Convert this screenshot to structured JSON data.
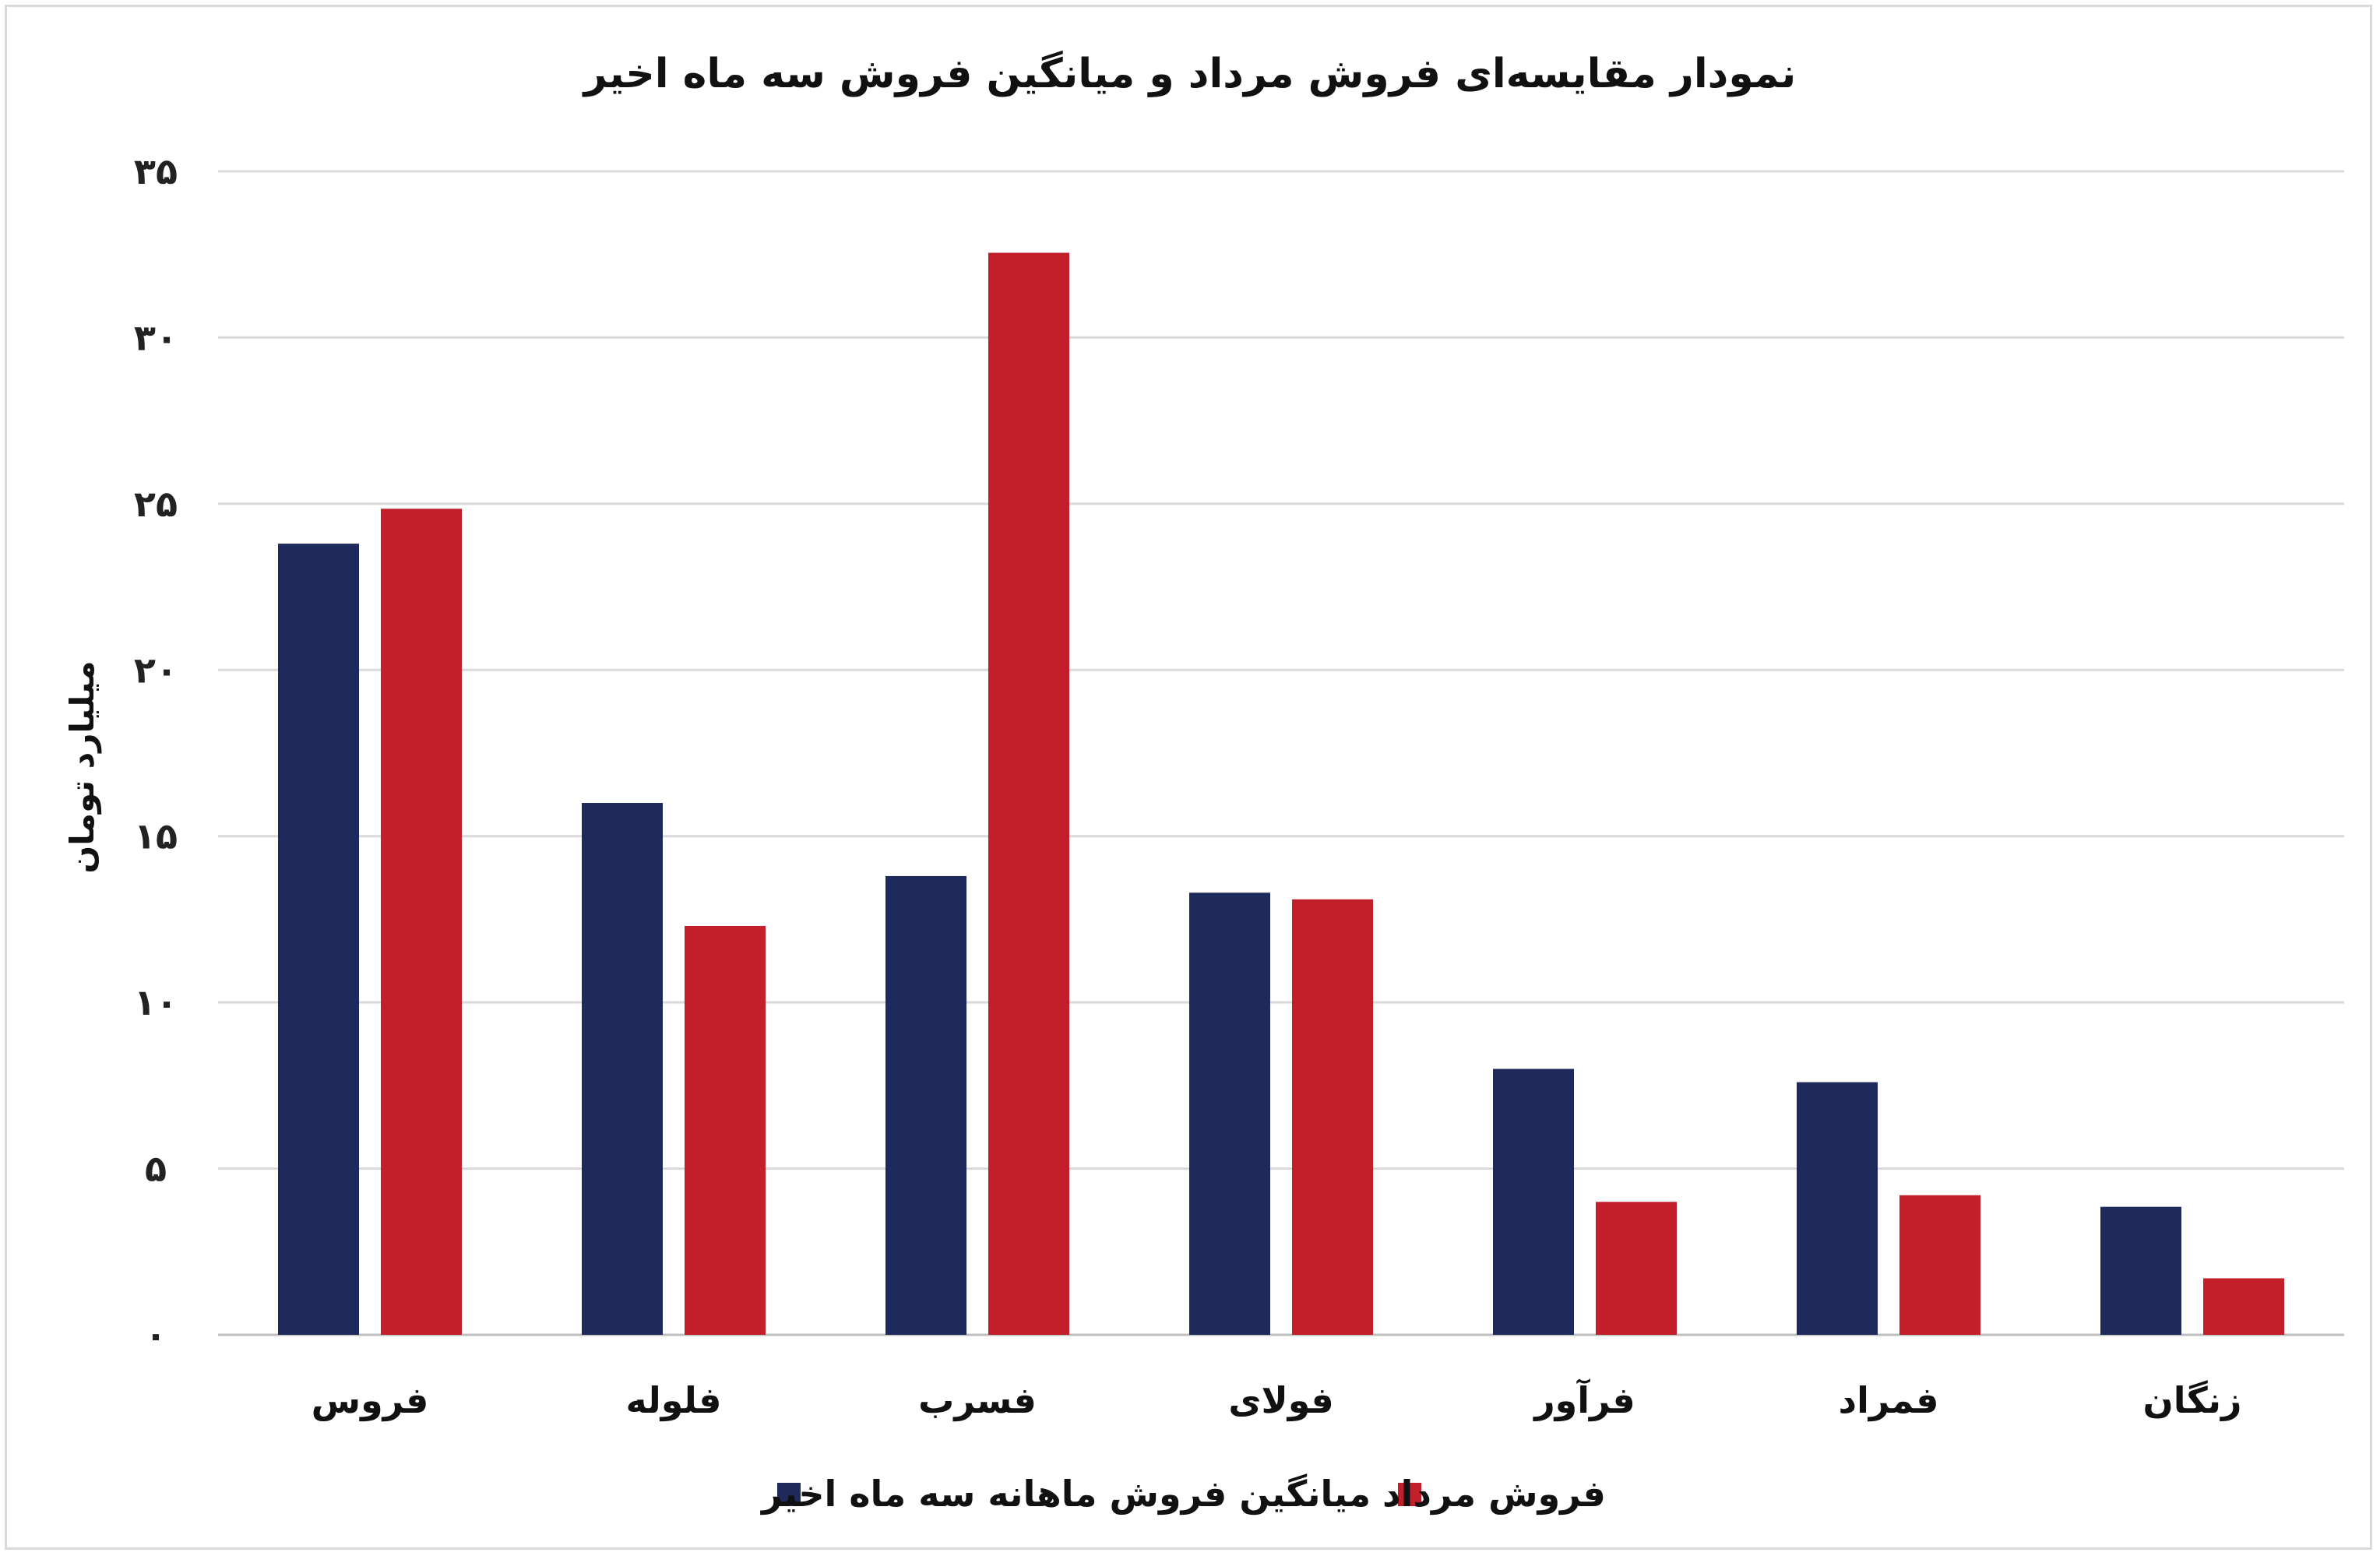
{
  "chart_data": {
    "type": "bar",
    "title": "نمودار مقایسه‌ای فروش مرداد و میانگین فروش سه ماه اخیر",
    "ylabel": "میلیارد تومان",
    "xlabel": "",
    "ylim": [
      0,
      35
    ],
    "yticks": [
      0,
      5,
      10,
      15,
      20,
      25,
      30,
      35
    ],
    "ytick_labels": [
      "۰",
      "۵",
      "۱۰",
      "۱۵",
      "۲۰",
      "۲۵",
      "۳۰",
      "۳۵"
    ],
    "categories": [
      "فروس",
      "فلوله",
      "فسرب",
      "فولای",
      "فرآور",
      "فمراد",
      "زنگان"
    ],
    "series": [
      {
        "name": "میانگین فروش ماهانه سه ماه اخیر",
        "color": "#1f2a5c",
        "values": [
          23.8,
          16.0,
          13.8,
          13.3,
          8.0,
          7.6,
          3.85
        ]
      },
      {
        "name": "فروش مرداد",
        "color": "#c21f2b",
        "values": [
          24.85,
          12.3,
          32.55,
          13.1,
          4.0,
          4.2,
          1.7
        ]
      }
    ],
    "grid": true,
    "legend_position": "bottom"
  }
}
